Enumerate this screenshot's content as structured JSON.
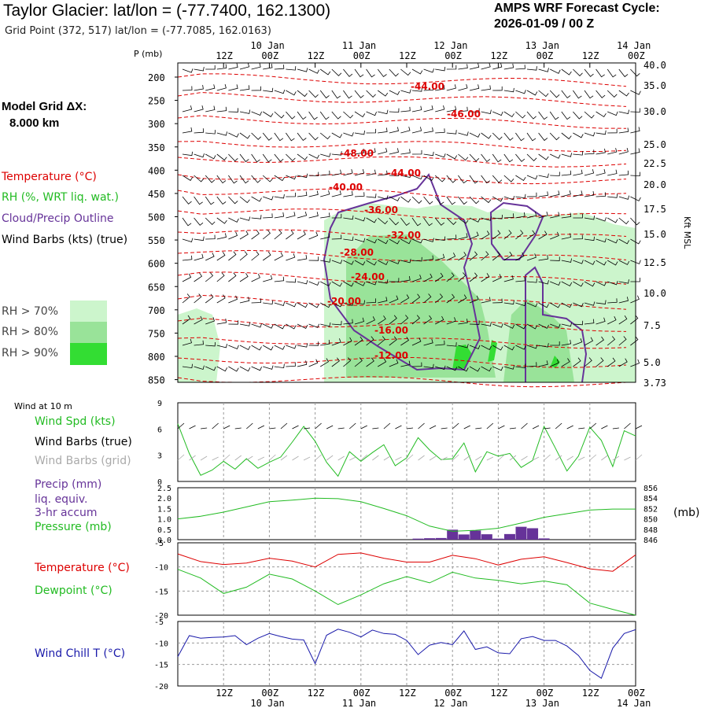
{
  "header": {
    "title": "Taylor Glacier:  lat/lon = (-77.7400, 162.1300)",
    "subtitle": "Grid Point (372, 517) lat/lon = (-77.7085, 162.0163)",
    "cycle_label": "AMPS WRF Forecast Cycle:",
    "cycle_value": "2026-01-09 / 00  Z",
    "model_grid_label": "Model Grid ΔX:",
    "model_grid_value": "8.000 km"
  },
  "legend": {
    "temperature": "Temperature (°C)",
    "rh": "RH (%, WRT liq. wat.)",
    "cloud": "Cloud/Precip Outline",
    "wind": "Wind Barbs (kts) (true)",
    "rh70": "RH > 70%",
    "rh80": "RH > 80%",
    "rh90": "RH > 90%",
    "wind10m": "Wind at 10 m",
    "wind_spd": "Wind Spd (kts)",
    "wind_barbs_true": "Wind Barbs (true)",
    "wind_barbs_grid": "Wind Barbs (grid)",
    "precip1": "Precip (mm)",
    "precip2": "liq. equiv.",
    "precip3": "3-hr accum",
    "pressure": "Pressure (mb)",
    "pressure_unit": "(mb)",
    "temp2": "Temperature (°C)",
    "dewpoint": "Dewpoint (°C)",
    "windchill": "Wind Chill T (°C)",
    "p_axis": "P (mb)",
    "kft_axis": "Kft MSL"
  },
  "colors": {
    "temperature": "#dd0000",
    "rh": "#22bb22",
    "cloud": "#663399",
    "wind_grid": "#aaaaaa",
    "windchill": "#1a1aaa",
    "rh70": "#ccf5cc",
    "rh80": "#99e399",
    "rh90": "#33dd33",
    "precip": "#663399"
  },
  "time_axis": {
    "ticks": [
      "12Z",
      "00Z",
      "12Z",
      "00Z",
      "12Z",
      "00Z",
      "12Z",
      "00Z",
      "12Z",
      "00Z"
    ],
    "days": [
      "10 Jan",
      "11 Jan",
      "12 Jan",
      "13 Jan",
      "14 Jan"
    ]
  },
  "chart_data": [
    {
      "type": "line",
      "name": "cross-section",
      "y_pressure_ticks": [
        "200",
        "250",
        "300",
        "350",
        "400",
        "450",
        "500",
        "550",
        "600",
        "650",
        "700",
        "750",
        "800",
        "850"
      ],
      "kft_ticks": [
        "40.0",
        "35.0",
        "30.0",
        "25.0",
        "22.5",
        "20.0",
        "17.5",
        "15.0",
        "12.5",
        "10.0",
        "7.5",
        "5.0",
        "3.73"
      ],
      "isotherm_labels": [
        "-44.00",
        "-46.00",
        "-48.00",
        "-44.00",
        "-40.00",
        "-36.00",
        "-32.00",
        "-28.00",
        "-24.00",
        "-20.00",
        "-16.00",
        "-12.00"
      ]
    },
    {
      "type": "line",
      "name": "wind-speed",
      "ylim": [
        0,
        9
      ],
      "y_ticks": [
        "9",
        "6",
        "3",
        "0"
      ],
      "x_hours": [
        0,
        3,
        6,
        9,
        12,
        15,
        18,
        21,
        24,
        27,
        30,
        33,
        36,
        39,
        42,
        45,
        48,
        51,
        54,
        57,
        60,
        63,
        66,
        69,
        72,
        75,
        78,
        81,
        84,
        87,
        90,
        93,
        96,
        99,
        102,
        105,
        108,
        111,
        114,
        117,
        120
      ],
      "values": [
        6.6,
        3.2,
        0.7,
        1.3,
        2.3,
        1.4,
        2.6,
        1.5,
        2.2,
        2.8,
        4.5,
        6.3,
        4.6,
        2.2,
        0.6,
        3.4,
        2.3,
        3.3,
        4.2,
        1.8,
        2.7,
        5.0,
        3.6,
        2.5,
        2.6,
        4.4,
        1.1,
        3.4,
        2.9,
        3.2,
        1.6,
        2.4,
        6.3,
        3.8,
        1.2,
        2.9,
        6.2,
        4.7,
        1.7,
        5.8,
        5.2
      ]
    },
    {
      "type": "bar",
      "name": "precip-pressure",
      "precip_ylim": [
        0,
        2.5
      ],
      "precip_ticks": [
        "2.5",
        "2.0",
        "1.5",
        "1.0",
        "0.5",
        "0.0"
      ],
      "pressure_ylim": [
        846,
        856
      ],
      "pressure_ticks": [
        "856",
        "854",
        "852",
        "850",
        "848",
        "846"
      ],
      "precip_hours": [
        63,
        66,
        69,
        72,
        75,
        78,
        81,
        84,
        87,
        90,
        93,
        96
      ],
      "precip_values": [
        0.05,
        0.07,
        0.08,
        0.48,
        0.25,
        0.44,
        0.26,
        0.05,
        0.27,
        0.62,
        0.55,
        0.06
      ],
      "pressure_hours": [
        0,
        6,
        12,
        18,
        24,
        30,
        36,
        42,
        48,
        54,
        60,
        66,
        72,
        78,
        84,
        90,
        96,
        102,
        108,
        114,
        120
      ],
      "pressure_values": [
        850.0,
        850.5,
        851.3,
        852.3,
        853.3,
        853.6,
        854.0,
        853.9,
        853.3,
        852.0,
        850.6,
        848.6,
        847.6,
        847.8,
        848.2,
        849.2,
        850.3,
        851.0,
        851.7,
        851.9,
        851.9
      ]
    },
    {
      "type": "line",
      "name": "temperature-dewpoint",
      "ylim": [
        -20,
        -5
      ],
      "y_ticks": [
        "-5",
        "-10",
        "-15",
        "-20"
      ],
      "x_hours": [
        0,
        6,
        12,
        18,
        24,
        30,
        36,
        42,
        48,
        54,
        60,
        66,
        72,
        78,
        84,
        90,
        96,
        102,
        108,
        114,
        120
      ],
      "temperature": [
        -7.3,
        -8.9,
        -9.5,
        -9.2,
        -8.2,
        -8.8,
        -10.0,
        -7.4,
        -7.1,
        -8.2,
        -9.0,
        -9.0,
        -7.6,
        -8.3,
        -9.6,
        -8.4,
        -7.9,
        -9.1,
        -10.4,
        -10.9,
        -7.5
      ],
      "dewpoint": [
        -10.5,
        -12.3,
        -15.5,
        -14.2,
        -11.5,
        -12.5,
        -15.0,
        -17.8,
        -15.8,
        -13.5,
        -12.0,
        -13.3,
        -11.1,
        -12.3,
        -12.8,
        -13.5,
        -12.9,
        -13.7,
        -17.5,
        -18.8,
        -20.0
      ]
    },
    {
      "type": "line",
      "name": "wind-chill",
      "ylim": [
        -20,
        -5
      ],
      "y_ticks": [
        "-5",
        "-10",
        "-15",
        "-20"
      ],
      "x_hours": [
        0,
        3,
        6,
        9,
        12,
        15,
        18,
        21,
        24,
        27,
        30,
        33,
        36,
        39,
        42,
        45,
        48,
        51,
        54,
        57,
        60,
        63,
        66,
        69,
        72,
        75,
        78,
        81,
        84,
        87,
        90,
        93,
        96,
        99,
        102,
        105,
        108,
        111,
        114,
        117,
        120
      ],
      "values": [
        -13.2,
        -8.3,
        -8.9,
        -8.7,
        -8.6,
        -8.3,
        -10.4,
        -8.9,
        -7.8,
        -8.5,
        -9.1,
        -9.3,
        -14.8,
        -8.2,
        -6.8,
        -7.5,
        -8.6,
        -7.0,
        -7.8,
        -8.0,
        -9.4,
        -12.7,
        -10.5,
        -9.9,
        -10.4,
        -7.2,
        -11.5,
        -10.9,
        -12.3,
        -12.5,
        -9.0,
        -8.5,
        -9.4,
        -9.4,
        -10.7,
        -12.9,
        -16.4,
        -18.2,
        -11.2,
        -7.8,
        -6.9
      ]
    }
  ]
}
